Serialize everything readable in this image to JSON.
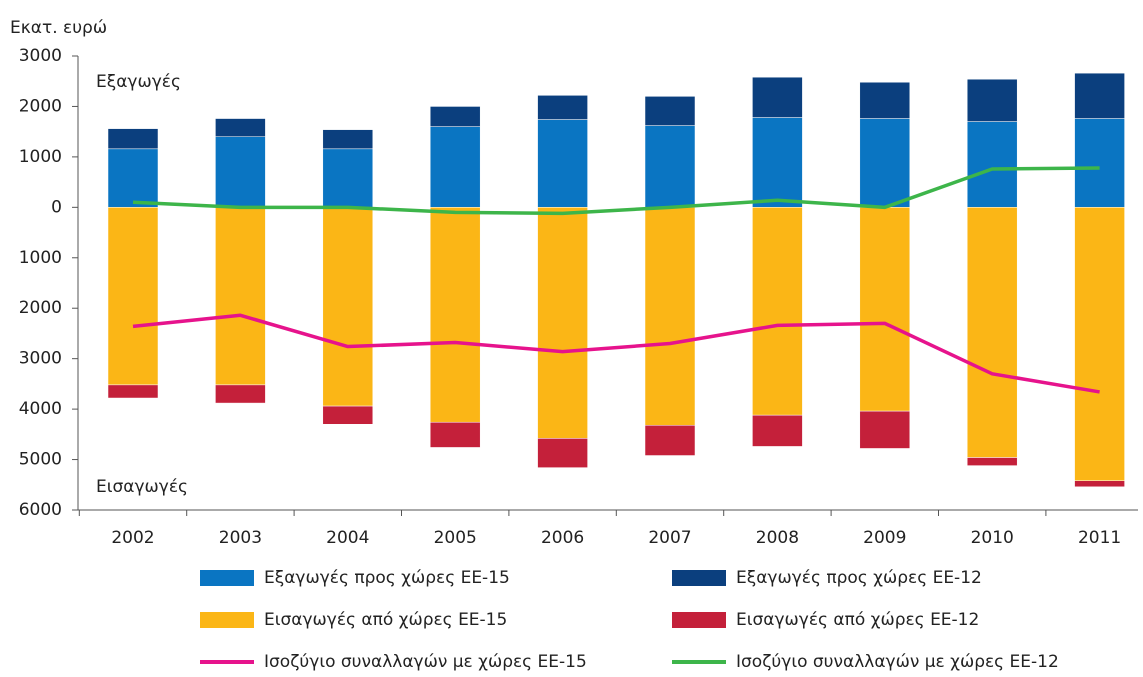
{
  "chart_data": {
    "type": "bar",
    "y_label": "Εκατ. ευρώ",
    "annotations": [
      "Εξαγωγές",
      "Εισαγωγές"
    ],
    "categories": [
      "2002",
      "2003",
      "2004",
      "2005",
      "2006",
      "2007",
      "2008",
      "2009",
      "2010",
      "2011"
    ],
    "series": [
      {
        "name": "Εξαγωγές προς χώρες ΕΕ-15",
        "type": "bar",
        "color": "#0a75c2",
        "values": [
          1160,
          1400,
          1160,
          1600,
          1740,
          1620,
          1780,
          1760,
          1700,
          1760
        ]
      },
      {
        "name": "Εξαγωγές προς χώρες ΕΕ-12",
        "type": "bar",
        "color": "#0b3f7e",
        "values": [
          400,
          360,
          380,
          400,
          480,
          580,
          800,
          720,
          840,
          900
        ]
      },
      {
        "name": "Εισαγωγές από χώρες ΕΕ-15",
        "type": "bar",
        "color": "#fbb616",
        "values": [
          -3520,
          -3520,
          -3940,
          -4260,
          -4580,
          -4320,
          -4120,
          -4040,
          -4960,
          -5420
        ]
      },
      {
        "name": "Εισαγωγές από χώρες ΕΕ-12",
        "type": "bar",
        "color": "#c4203a",
        "values": [
          -260,
          -360,
          -360,
          -500,
          -580,
          -600,
          -620,
          -740,
          -160,
          -120
        ]
      },
      {
        "name": "Ισοζύγιο συναλλαγών με χώρες ΕΕ-15",
        "type": "line",
        "color": "#e6138c",
        "values": [
          -2360,
          -2140,
          -2760,
          -2680,
          -2860,
          -2700,
          -2340,
          -2300,
          -3300,
          -3660
        ]
      },
      {
        "name": "Ισοζύγιο συναλλαγών με χώρες ΕΕ-12",
        "type": "line",
        "color": "#3db54a",
        "values": [
          100,
          0,
          0,
          -100,
          -120,
          0,
          140,
          0,
          760,
          780
        ]
      }
    ],
    "ylim": [
      -6000,
      3000
    ],
    "yticks": [
      3000,
      2000,
      1000,
      0,
      {
        "value": -1000,
        "label": "1000"
      },
      {
        "value": -2000,
        "label": "2000"
      },
      {
        "value": -3000,
        "label": "3000"
      },
      {
        "value": -4000,
        "label": "4000"
      },
      {
        "value": -5000,
        "label": "5000"
      },
      {
        "value": -6000,
        "label": "6000"
      }
    ],
    "grid": false
  }
}
